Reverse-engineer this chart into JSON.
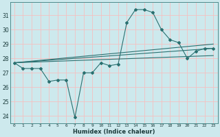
{
  "xlabel": "Humidex (Indice chaleur)",
  "ylabel": "",
  "bg_color": "#cde9ed",
  "grid_color": "#f5c0c0",
  "line_color": "#2a7070",
  "xlim": [
    -0.5,
    23.5
  ],
  "ylim": [
    23.5,
    31.9
  ],
  "xtick_labels": [
    "0",
    "1",
    "2",
    "3",
    "4",
    "5",
    "6",
    "7",
    "8",
    "9",
    "10",
    "11",
    "12",
    "13",
    "14",
    "15",
    "16",
    "17",
    "18",
    "19",
    "20",
    "21",
    "22",
    "23"
  ],
  "ytick_labels": [
    "24",
    "25",
    "26",
    "27",
    "28",
    "29",
    "30",
    "31"
  ],
  "ytick_vals": [
    24,
    25,
    26,
    27,
    28,
    29,
    30,
    31
  ],
  "line1_x": [
    0,
    1,
    2,
    3,
    4,
    5,
    6,
    7,
    8,
    9,
    10,
    11,
    12,
    13,
    14,
    15,
    16,
    17,
    18,
    19,
    20,
    21,
    22,
    23
  ],
  "line1_y": [
    27.7,
    27.3,
    27.3,
    27.3,
    26.4,
    26.5,
    26.5,
    23.9,
    27.0,
    27.0,
    27.7,
    27.5,
    27.6,
    30.5,
    31.4,
    31.4,
    31.2,
    30.0,
    29.3,
    29.1,
    28.0,
    28.5,
    28.7,
    28.7
  ],
  "line2_x": [
    0,
    23
  ],
  "line2_y": [
    27.7,
    29.0
  ],
  "line3_x": [
    0,
    23
  ],
  "line3_y": [
    27.7,
    28.7
  ],
  "line4_x": [
    0,
    23
  ],
  "line4_y": [
    27.7,
    28.2
  ]
}
